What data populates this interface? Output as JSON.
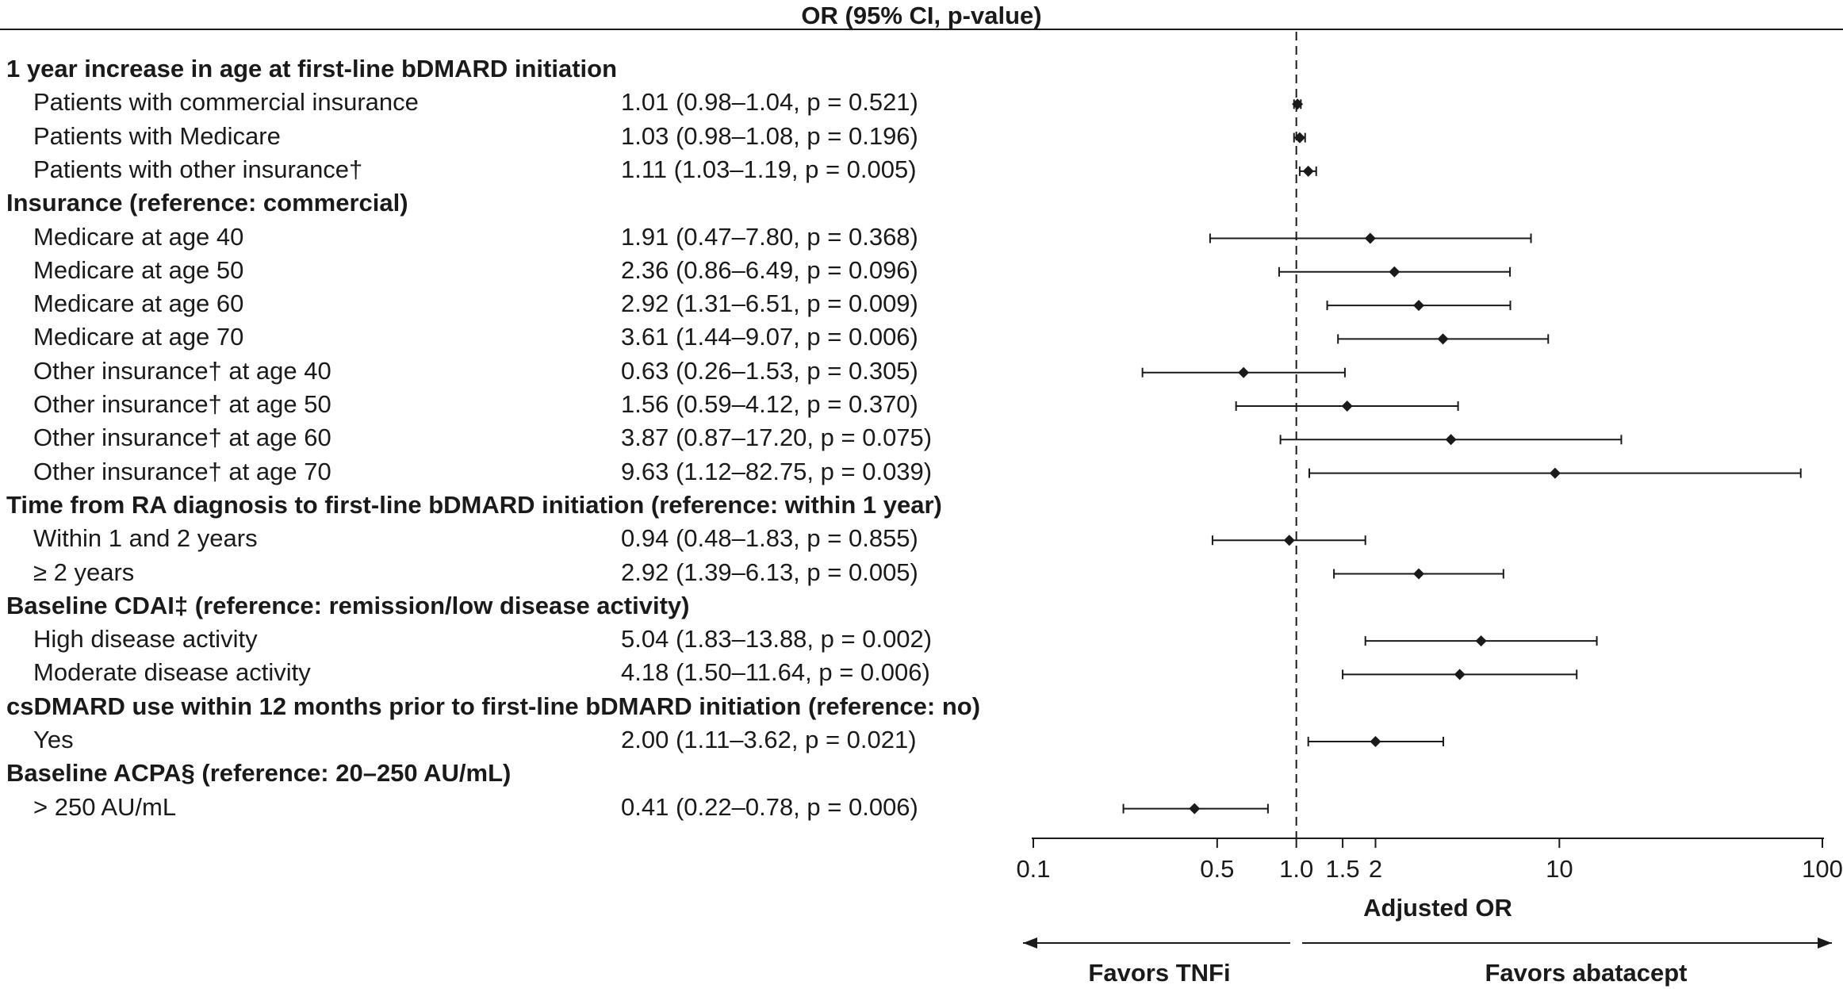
{
  "header": {
    "title": "OR (95% CI, p-value)"
  },
  "rows": [
    {
      "type": "group",
      "label": "1 year increase in age at first-line bDMARD initiation"
    },
    {
      "type": "item",
      "label": "Patients with commercial insurance",
      "value": "1.01 (0.98–1.04, p = 0.521)"
    },
    {
      "type": "item",
      "label": "Patients with Medicare",
      "value": "1.03 (0.98–1.08, p = 0.196)"
    },
    {
      "type": "item",
      "label": "Patients with other insurance†",
      "value": "1.11 (1.03–1.19, p = 0.005)"
    },
    {
      "type": "group",
      "label": "Insurance (reference: commercial)"
    },
    {
      "type": "item",
      "label": "Medicare at age 40",
      "value": "1.91 (0.47–7.80, p = 0.368)"
    },
    {
      "type": "item",
      "label": "Medicare at age 50",
      "value": "2.36 (0.86–6.49, p = 0.096)"
    },
    {
      "type": "item",
      "label": "Medicare at age 60",
      "value": "2.92 (1.31–6.51, p = 0.009)"
    },
    {
      "type": "item",
      "label": "Medicare at age 70",
      "value": "3.61 (1.44–9.07, p = 0.006)"
    },
    {
      "type": "item",
      "label": "Other insurance† at age 40",
      "value": "0.63 (0.26–1.53, p = 0.305)"
    },
    {
      "type": "item",
      "label": "Other insurance† at age 50",
      "value": "1.56 (0.59–4.12, p = 0.370)"
    },
    {
      "type": "item",
      "label": "Other insurance† at age 60",
      "value": "3.87 (0.87–17.20, p = 0.075)"
    },
    {
      "type": "item",
      "label": "Other insurance† at age 70",
      "value": "9.63 (1.12–82.75, p = 0.039)"
    },
    {
      "type": "group",
      "label": "Time from RA diagnosis to first-line bDMARD initiation (reference: within 1 year)"
    },
    {
      "type": "item",
      "label": "Within 1 and 2 years",
      "value": "0.94 (0.48–1.83, p = 0.855)"
    },
    {
      "type": "item",
      "label": "≥ 2 years",
      "value": "2.92 (1.39–6.13, p = 0.005)"
    },
    {
      "type": "group",
      "label": "Baseline CDAI‡ (reference: remission/low disease activity)"
    },
    {
      "type": "item",
      "label": "High disease activity",
      "value": "5.04 (1.83–13.88, p = 0.002)"
    },
    {
      "type": "item",
      "label": "Moderate disease activity",
      "value": "4.18 (1.50–11.64, p = 0.006)"
    },
    {
      "type": "group",
      "label": "csDMARD use within 12 months prior to first-line bDMARD initiation (reference: no)"
    },
    {
      "type": "item",
      "label": "Yes",
      "value": "2.00 (1.11–3.62, p = 0.021)"
    },
    {
      "type": "group",
      "label": "Baseline ACPA§ (reference: 20–250 AU/mL)"
    },
    {
      "type": "item",
      "label": "> 250 AU/mL",
      "value": "0.41 (0.22–0.78, p = 0.006)"
    }
  ],
  "chart_data": {
    "type": "forest",
    "xscale": "log",
    "xlim": [
      0.1,
      100
    ],
    "ticks": [
      0.1,
      0.5,
      1.0,
      1.5,
      2,
      10,
      100
    ],
    "tick_labels": [
      "0.1",
      "0.5",
      "1.0",
      "1.5",
      "2",
      "10",
      "100"
    ],
    "reference_line": 1.0,
    "xlabel": "Adjusted OR",
    "left_arrow_label": "Favors TNFi",
    "right_arrow_label": "Favors abatacept",
    "estimates": [
      null,
      {
        "or": 1.01,
        "lo": 0.98,
        "hi": 1.04
      },
      {
        "or": 1.03,
        "lo": 0.98,
        "hi": 1.08
      },
      {
        "or": 1.11,
        "lo": 1.03,
        "hi": 1.19
      },
      null,
      {
        "or": 1.91,
        "lo": 0.47,
        "hi": 7.8
      },
      {
        "or": 2.36,
        "lo": 0.86,
        "hi": 6.49
      },
      {
        "or": 2.92,
        "lo": 1.31,
        "hi": 6.51
      },
      {
        "or": 3.61,
        "lo": 1.44,
        "hi": 9.07
      },
      {
        "or": 0.63,
        "lo": 0.26,
        "hi": 1.53
      },
      {
        "or": 1.56,
        "lo": 0.59,
        "hi": 4.12
      },
      {
        "or": 3.87,
        "lo": 0.87,
        "hi": 17.2
      },
      {
        "or": 9.63,
        "lo": 1.12,
        "hi": 82.75
      },
      null,
      {
        "or": 0.94,
        "lo": 0.48,
        "hi": 1.83
      },
      {
        "or": 2.92,
        "lo": 1.39,
        "hi": 6.13
      },
      null,
      {
        "or": 5.04,
        "lo": 1.83,
        "hi": 13.88
      },
      {
        "or": 4.18,
        "lo": 1.5,
        "hi": 11.64
      },
      null,
      {
        "or": 2.0,
        "lo": 1.11,
        "hi": 3.62
      },
      null,
      {
        "or": 0.41,
        "lo": 0.22,
        "hi": 0.78
      }
    ]
  }
}
